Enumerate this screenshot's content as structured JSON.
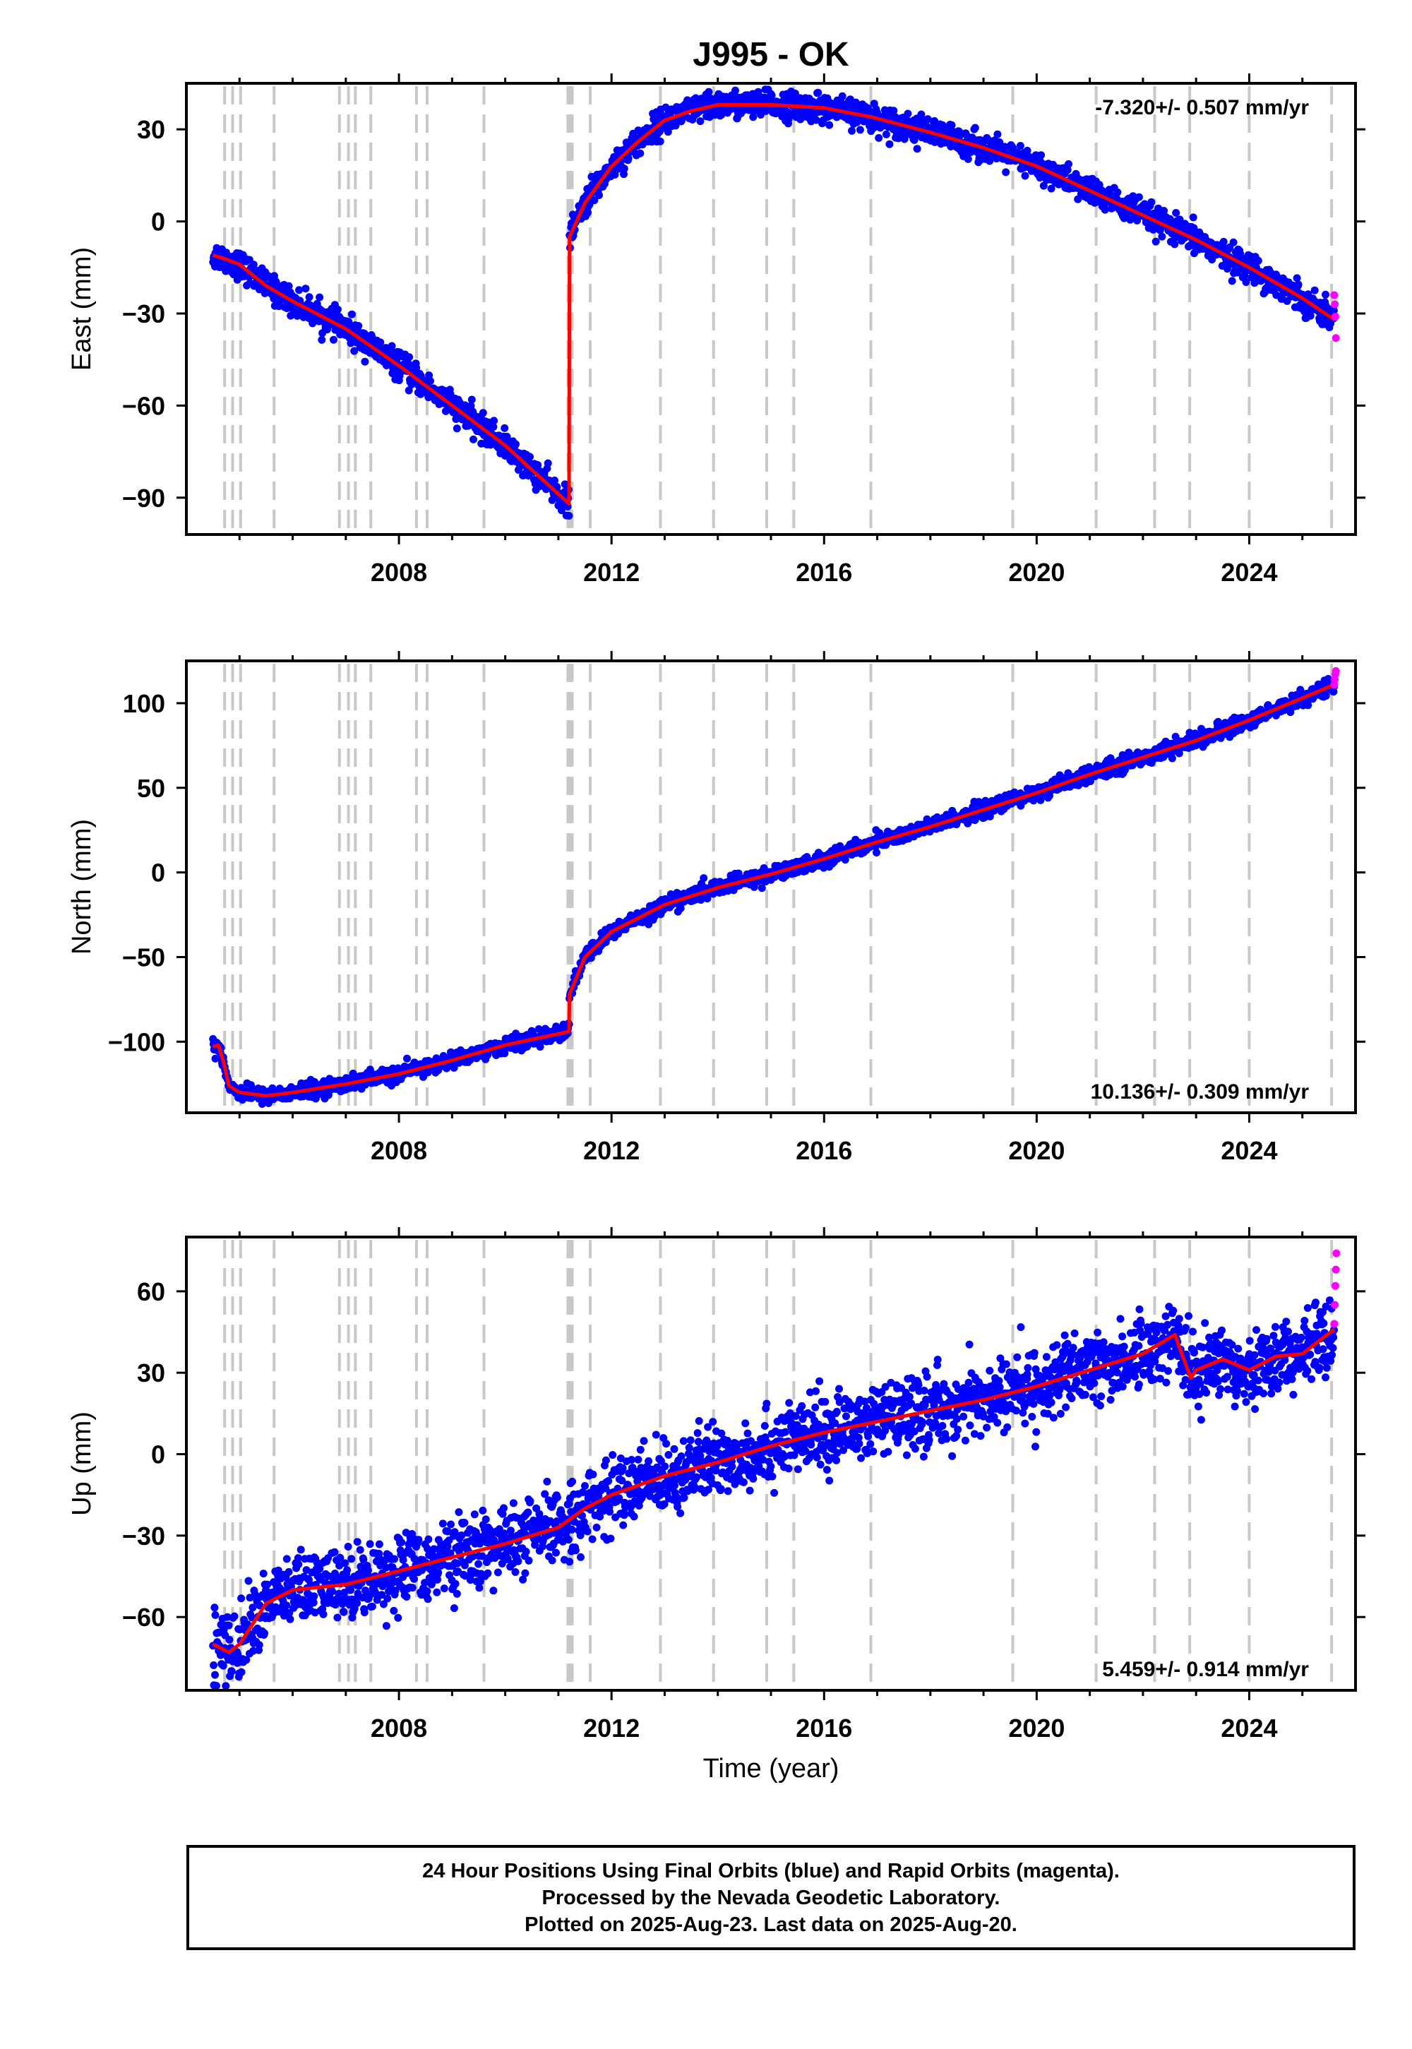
{
  "title": "J995 - OK",
  "x_axis_label": "Time (year)",
  "x_ticks": [
    "2008",
    "2012",
    "2016",
    "2020",
    "2024"
  ],
  "colors": {
    "final": "#0000ff",
    "rapid": "#ff00ff",
    "model": "#ff0000",
    "events": "#c8c8c8"
  },
  "event_years": [
    2004.72,
    2004.87,
    2005.02,
    2005.65,
    2006.88,
    2007.05,
    2007.18,
    2007.47,
    2008.33,
    2008.53,
    2009.6,
    2011.18,
    2011.22,
    2011.26,
    2011.6,
    2012.92,
    2013.92,
    2014.92,
    2015.43,
    2016.88,
    2019.55,
    2021.12,
    2022.22,
    2022.88,
    2024.0,
    2025.55
  ],
  "caption": [
    "24 Hour Positions Using Final Orbits (blue) and Rapid Orbits (magenta).",
    "Processed by the Nevada Geodetic Laboratory.",
    "Plotted on 2025-Aug-23. Last data on 2025-Aug-20."
  ],
  "chart_data": [
    {
      "type": "scatter",
      "name": "east",
      "ylabel": "East (mm)",
      "rate_label": "-7.320+/- 0.507 mm/yr",
      "rate_position": "top-right",
      "xlim": [
        2004.0,
        2026.0
      ],
      "ylim": [
        -102,
        45
      ],
      "y_ticks": [
        30,
        0,
        -30,
        -60,
        -90
      ],
      "noise_mm": 2.2,
      "model_line": {
        "x": [
          2004.5,
          2004.7,
          2005.0,
          2005.5,
          2006.0,
          2007.0,
          2008.0,
          2009.0,
          2010.0,
          2011.2,
          2011.21,
          2011.5,
          2012.0,
          2012.5,
          2013.0,
          2013.5,
          2014.0,
          2015.0,
          2016.0,
          2016.9,
          2018.0,
          2019.0,
          2020.0,
          2021.0,
          2022.0,
          2023.0,
          2024.0,
          2025.0,
          2025.6
        ],
        "y": [
          -11,
          -12,
          -14,
          -21,
          -26,
          -35,
          -47,
          -60,
          -73,
          -92,
          -5,
          6,
          18,
          26,
          33,
          36,
          38,
          38,
          37,
          34,
          29,
          24,
          18,
          10,
          2,
          -6,
          -15,
          -25,
          -32
        ]
      },
      "rapid_points": {
        "x": [
          2025.6,
          2025.61,
          2025.62,
          2025.63
        ],
        "y": [
          -24,
          -27,
          -31,
          -38
        ]
      }
    },
    {
      "type": "scatter",
      "name": "north",
      "ylabel": "North (mm)",
      "rate_label": "10.136+/- 0.309 mm/yr",
      "rate_position": "bottom-right",
      "xlim": [
        2004.0,
        2026.0
      ],
      "ylim": [
        -142,
        125
      ],
      "y_ticks": [
        100,
        50,
        0,
        -50,
        -100
      ],
      "noise_mm": 2.2,
      "model_line": {
        "x": [
          2004.5,
          2004.6,
          2004.7,
          2004.8,
          2005.0,
          2005.5,
          2006.0,
          2007.0,
          2008.0,
          2009.0,
          2010.0,
          2011.2,
          2011.21,
          2011.5,
          2012.0,
          2013.0,
          2014.0,
          2015.0,
          2016.0,
          2017.0,
          2018.0,
          2019.0,
          2020.0,
          2021.0,
          2022.0,
          2023.0,
          2024.0,
          2025.0,
          2025.6
        ],
        "y": [
          -103,
          -102,
          -112,
          -126,
          -130,
          -132,
          -130,
          -125,
          -119,
          -111,
          -102,
          -94,
          -72,
          -50,
          -35,
          -19,
          -9,
          -1,
          8,
          18,
          27,
          37,
          47,
          58,
          68,
          78,
          90,
          103,
          111
        ]
      },
      "rapid_points": {
        "x": [
          2025.6,
          2025.61,
          2025.62,
          2025.63
        ],
        "y": [
          111,
          114,
          117,
          119
        ]
      }
    },
    {
      "type": "scatter",
      "name": "up",
      "ylabel": "Up (mm)",
      "rate_label": "5.459+/- 0.914 mm/yr",
      "rate_position": "bottom-right",
      "xlim": [
        2004.0,
        2026.0
      ],
      "ylim": [
        -87,
        80
      ],
      "y_ticks": [
        60,
        30,
        0,
        -30,
        -60
      ],
      "noise_mm": 6.5,
      "model_line": {
        "x": [
          2004.5,
          2004.8,
          2005.0,
          2005.5,
          2006.0,
          2007.0,
          2008.0,
          2009.0,
          2010.0,
          2011.0,
          2011.5,
          2012.0,
          2013.0,
          2014.0,
          2015.0,
          2016.0,
          2017.0,
          2018.0,
          2019.0,
          2020.0,
          2021.0,
          2022.0,
          2022.6,
          2022.9,
          2023.0,
          2023.5,
          2024.0,
          2024.5,
          2025.0,
          2025.6
        ],
        "y": [
          -70,
          -73,
          -70,
          -55,
          -50,
          -48,
          -43,
          -38,
          -33,
          -27,
          -20,
          -15,
          -8,
          -3,
          3,
          8,
          12,
          16,
          20,
          25,
          31,
          37,
          44,
          28,
          31,
          35,
          31,
          36,
          37,
          46
        ]
      },
      "rapid_points": {
        "x": [
          2025.6,
          2025.61,
          2025.62,
          2025.63,
          2025.64
        ],
        "y": [
          48,
          55,
          62,
          68,
          74
        ]
      }
    }
  ]
}
